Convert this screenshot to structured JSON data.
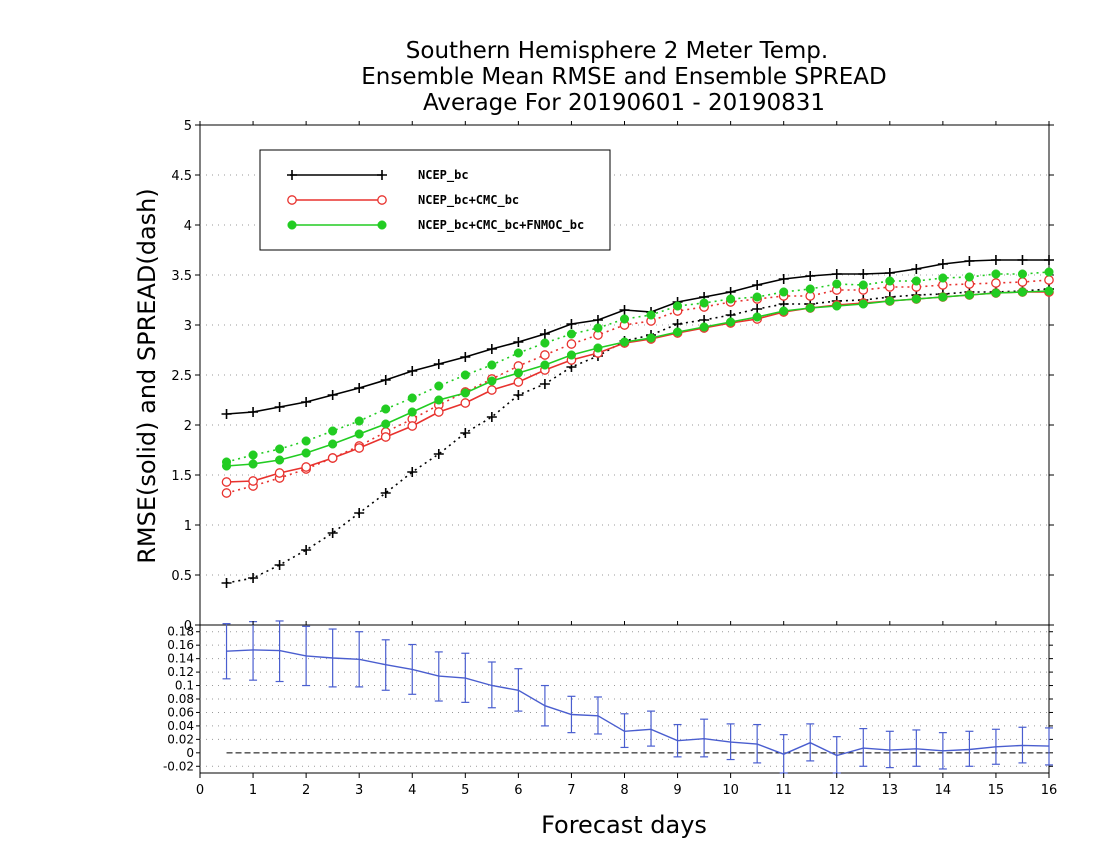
{
  "chart_data": [
    {
      "type": "line",
      "title": [
        "Southern Hemisphere 2 Meter Temp.",
        "Ensemble Mean RMSE and Ensemble SPREAD",
        "Average For 20190601 - 20190831"
      ],
      "xlabel": "Forecast days",
      "ylabel": "RMSE(solid) and SPREAD(dash)",
      "xlim": [
        0,
        16
      ],
      "ylim": [
        0,
        5
      ],
      "xticks": [
        "0",
        "1",
        "2",
        "3",
        "4",
        "5",
        "6",
        "7",
        "8",
        "9",
        "10",
        "11",
        "12",
        "13",
        "14",
        "15",
        "16"
      ],
      "yticks": [
        "0",
        "0.5",
        "1",
        "1.5",
        "2",
        "2.5",
        "3",
        "3.5",
        "4",
        "4.5",
        "5"
      ],
      "grid": true,
      "legend_position": "top-left",
      "x": [
        0.5,
        1,
        1.5,
        2,
        2.5,
        3,
        3.5,
        4,
        4.5,
        5,
        5.5,
        6,
        6.5,
        7,
        7.5,
        8,
        8.5,
        9,
        9.5,
        10,
        10.5,
        11,
        11.5,
        12,
        12.5,
        13,
        13.5,
        14,
        14.5,
        15,
        15.5,
        16
      ],
      "series": [
        {
          "name": "NCEP_bc",
          "color": "#000000",
          "marker": "plus",
          "rmse": [
            2.11,
            2.13,
            2.18,
            2.23,
            2.3,
            2.37,
            2.45,
            2.54,
            2.61,
            2.68,
            2.76,
            2.83,
            2.91,
            3.01,
            3.05,
            3.15,
            3.13,
            3.23,
            3.28,
            3.33,
            3.4,
            3.46,
            3.49,
            3.51,
            3.51,
            3.52,
            3.56,
            3.61,
            3.64,
            3.65,
            3.65,
            3.65
          ],
          "spread": [
            0.42,
            0.47,
            0.6,
            0.75,
            0.92,
            1.12,
            1.32,
            1.53,
            1.71,
            1.92,
            2.08,
            2.3,
            2.41,
            2.58,
            2.69,
            2.84,
            2.9,
            3.01,
            3.05,
            3.1,
            3.16,
            3.21,
            3.21,
            3.24,
            3.25,
            3.28,
            3.3,
            3.31,
            3.33,
            3.33,
            3.34,
            3.36
          ]
        },
        {
          "name": "NCEP_bc+CMC_bc",
          "color": "#e8322e",
          "marker": "circle-open",
          "rmse": [
            1.43,
            1.44,
            1.52,
            1.58,
            1.67,
            1.77,
            1.88,
            1.99,
            2.13,
            2.22,
            2.35,
            2.43,
            2.55,
            2.65,
            2.72,
            2.82,
            2.86,
            2.92,
            2.97,
            3.02,
            3.06,
            3.13,
            3.17,
            3.2,
            3.22,
            3.24,
            3.26,
            3.28,
            3.3,
            3.32,
            3.33,
            3.33
          ],
          "spread": [
            1.32,
            1.39,
            1.47,
            1.56,
            1.67,
            1.79,
            1.93,
            2.06,
            2.2,
            2.33,
            2.46,
            2.59,
            2.7,
            2.81,
            2.9,
            3.0,
            3.04,
            3.14,
            3.18,
            3.23,
            3.26,
            3.29,
            3.29,
            3.35,
            3.35,
            3.38,
            3.38,
            3.4,
            3.41,
            3.42,
            3.43,
            3.45
          ]
        },
        {
          "name": "NCEP_bc+CMC_bc+FNMOC_bc",
          "color": "#22cc22",
          "marker": "circle-filled",
          "rmse": [
            1.59,
            1.61,
            1.65,
            1.72,
            1.81,
            1.91,
            2.01,
            2.13,
            2.25,
            2.32,
            2.44,
            2.52,
            2.6,
            2.7,
            2.77,
            2.83,
            2.87,
            2.93,
            2.98,
            3.03,
            3.08,
            3.14,
            3.17,
            3.19,
            3.21,
            3.24,
            3.26,
            3.28,
            3.3,
            3.32,
            3.33,
            3.34
          ],
          "spread": [
            1.63,
            1.7,
            1.76,
            1.84,
            1.94,
            2.04,
            2.16,
            2.27,
            2.39,
            2.5,
            2.6,
            2.72,
            2.82,
            2.91,
            2.97,
            3.06,
            3.1,
            3.19,
            3.22,
            3.26,
            3.28,
            3.33,
            3.36,
            3.41,
            3.4,
            3.44,
            3.44,
            3.47,
            3.48,
            3.51,
            3.51,
            3.53
          ]
        }
      ]
    },
    {
      "type": "line",
      "xlim": [
        0,
        16
      ],
      "ylim": [
        -0.03,
        0.19
      ],
      "yticks": [
        "-0.02",
        "0",
        "0.02",
        "0.04",
        "0.06",
        "0.08",
        "0.1",
        "0.12",
        "0.14",
        "0.16",
        "0.18"
      ],
      "grid": true,
      "color": "#4a5ecf",
      "zero_line": true,
      "x": [
        0.5,
        1,
        1.5,
        2,
        2.5,
        3,
        3.5,
        4,
        4.5,
        5,
        5.5,
        6,
        6.5,
        7,
        7.5,
        8,
        8.5,
        9,
        9.5,
        10,
        10.5,
        11,
        11.5,
        12,
        12.5,
        13,
        13.5,
        14,
        14.5,
        15,
        15.5,
        16
      ],
      "values": [
        0.151,
        0.153,
        0.152,
        0.144,
        0.141,
        0.139,
        0.131,
        0.124,
        0.114,
        0.111,
        0.1,
        0.093,
        0.07,
        0.057,
        0.055,
        0.032,
        0.035,
        0.018,
        0.021,
        0.016,
        0.013,
        -0.002,
        0.015,
        -0.004,
        0.007,
        0.004,
        0.006,
        0.003,
        0.005,
        0.009,
        0.011,
        0.01
      ],
      "error_low": [
        0.11,
        0.108,
        0.106,
        0.1,
        0.098,
        0.098,
        0.093,
        0.087,
        0.077,
        0.075,
        0.067,
        0.062,
        0.04,
        0.03,
        0.028,
        0.008,
        0.01,
        -0.006,
        -0.006,
        -0.01,
        -0.015,
        -0.03,
        -0.012,
        -0.03,
        -0.02,
        -0.022,
        -0.02,
        -0.024,
        -0.02,
        -0.017,
        -0.015,
        -0.018
      ],
      "error_high": [
        0.192,
        0.195,
        0.196,
        0.188,
        0.184,
        0.18,
        0.168,
        0.161,
        0.15,
        0.148,
        0.135,
        0.125,
        0.1,
        0.084,
        0.083,
        0.058,
        0.062,
        0.042,
        0.05,
        0.043,
        0.042,
        0.027,
        0.043,
        0.024,
        0.036,
        0.032,
        0.034,
        0.03,
        0.032,
        0.035,
        0.038,
        0.037
      ]
    }
  ]
}
